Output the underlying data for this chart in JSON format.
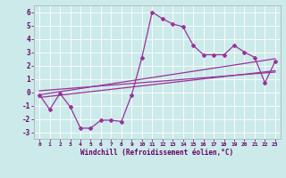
{
  "xlabel": "Windchill (Refroidissement éolien,°C)",
  "bg_color": "#cceaea",
  "line_color": "#993399",
  "xlim": [
    -0.5,
    23.5
  ],
  "ylim": [
    -3.5,
    6.5
  ],
  "yticks": [
    -3,
    -2,
    -1,
    0,
    1,
    2,
    3,
    4,
    5,
    6
  ],
  "xticks": [
    0,
    1,
    2,
    3,
    4,
    5,
    6,
    7,
    8,
    9,
    10,
    11,
    12,
    13,
    14,
    15,
    16,
    17,
    18,
    19,
    20,
    21,
    22,
    23
  ],
  "main_x": [
    0,
    1,
    2,
    3,
    4,
    5,
    6,
    7,
    8,
    9,
    10,
    11,
    12,
    13,
    14,
    15,
    16,
    17,
    18,
    19,
    20,
    21,
    22,
    23
  ],
  "main_y": [
    -0.2,
    -1.3,
    -0.1,
    -1.1,
    -2.7,
    -2.7,
    -2.1,
    -2.1,
    -2.2,
    -0.2,
    2.6,
    6.0,
    5.5,
    5.1,
    4.9,
    3.5,
    2.8,
    2.8,
    2.8,
    3.5,
    3.0,
    2.6,
    0.7,
    2.3
  ],
  "line1_x": [
    0,
    23
  ],
  "line1_y": [
    -0.2,
    2.5
  ],
  "line2_x": [
    0,
    23
  ],
  "line2_y": [
    0.1,
    1.5
  ],
  "line3_x": [
    0,
    23
  ],
  "line3_y": [
    -0.4,
    1.6
  ]
}
